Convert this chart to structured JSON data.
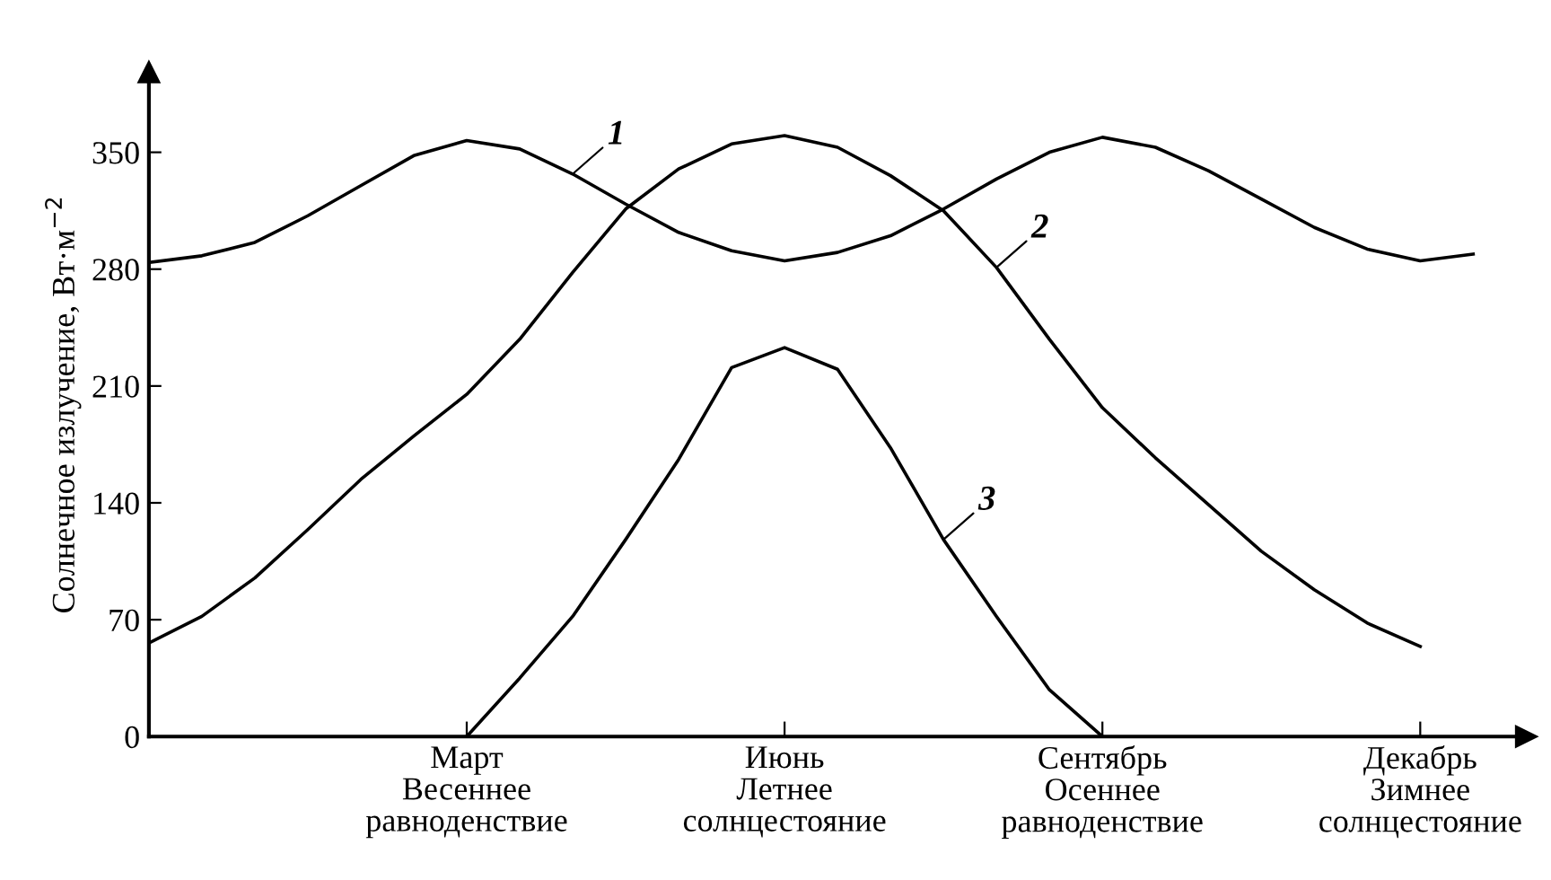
{
  "chart_data": {
    "type": "line",
    "ylabel": "Солнечное излучение, Вт·м$^{−2}$",
    "categories": [
      null,
      null,
      null,
      null,
      null,
      null,
      "Март\nВесеннее\nравноденствие",
      null,
      null,
      null,
      null,
      null,
      "Июнь\nЛетнее\nсолнцестояние",
      null,
      null,
      null,
      null,
      null,
      "Сентябрь\nОсеннее\nравноденствие",
      null,
      null,
      null,
      null,
      null,
      "Декабрь\nЗимнее\nсолнцестояние",
      null,
      null
    ],
    "ylim": [
      0,
      398
    ],
    "yticks": [
      0,
      70,
      140,
      210,
      280,
      350
    ],
    "grid": false,
    "legend": false,
    "marker": "none",
    "line_style": "solid",
    "series": [
      {
        "name": "1",
        "color": "#000000",
        "values": [
          284,
          288,
          296,
          312,
          330,
          348,
          357,
          352,
          337,
          319,
          302,
          291,
          285,
          290,
          300,
          316,
          334,
          350,
          359,
          353,
          339,
          322,
          305,
          292,
          285,
          289,
          null
        ]
      },
      {
        "name": "2",
        "color": "#000000",
        "values": [
          56,
          72,
          95,
          124,
          154,
          180,
          205,
          238,
          278,
          316,
          340,
          355,
          360,
          353,
          336,
          315,
          281,
          238,
          197,
          167,
          139,
          111,
          88,
          68,
          54,
          null,
          null
        ]
      },
      {
        "name": "3",
        "color": "#000000",
        "values": [
          null,
          null,
          null,
          null,
          null,
          null,
          0,
          35,
          72,
          118,
          166,
          221,
          233,
          220,
          173,
          118,
          72,
          28,
          0,
          null,
          null,
          null,
          null,
          null,
          null,
          null,
          null
        ]
      }
    ]
  }
}
